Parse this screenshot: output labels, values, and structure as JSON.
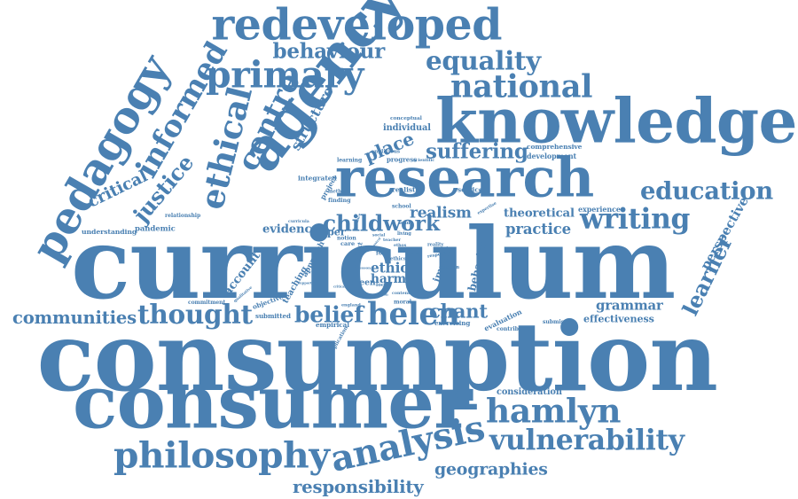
{
  "colors": {
    "word": "#4a80b2",
    "background": "#ffffff"
  },
  "words": [
    "consumption",
    "curriculum",
    "consumer",
    "knowledge",
    "research",
    "agency",
    "redeveloped",
    "pedagogy",
    "philosophy",
    "analysis",
    "primary",
    "national",
    "informed",
    "ethical",
    "hamlyn",
    "writing",
    "vulnerability",
    "equality",
    "education",
    "helen",
    "thought",
    "centre",
    "communities",
    "responsibility",
    "geographies",
    "behaviour",
    "suffering",
    "justice",
    "child",
    "work",
    "belief",
    "chant",
    "learner",
    "grammar",
    "perspective",
    "critical",
    "place",
    "realism",
    "practice",
    "theoretical",
    "structure",
    "evidence",
    "paper",
    "ethic",
    "harm",
    "account",
    "understanding",
    "pandemic",
    "relationship",
    "integrated",
    "teaching",
    "approach",
    "behavior",
    "impact",
    "green",
    "evaluation",
    "exercising",
    "effectiveness",
    "consideration",
    "submission",
    "contribute",
    "commitment",
    "objective",
    "submitted",
    "empirical",
    "individual",
    "conceptual",
    "comprehensive",
    "development",
    "experience",
    "service",
    "realist",
    "method",
    "finding",
    "project",
    "learning",
    "progress",
    "school",
    "curricula",
    "notion",
    "care",
    "food",
    "context",
    "moral",
    "ethics",
    "england",
    "qualitative",
    "implication",
    "support",
    "critical",
    "reality",
    "expertise",
    "englicious",
    "teacher",
    "living",
    "social",
    "control",
    "ethos",
    "focus",
    "lead",
    "content",
    "instance",
    "lesson",
    "interest",
    "scientific",
    "relation",
    "respect",
    "action"
  ]
}
